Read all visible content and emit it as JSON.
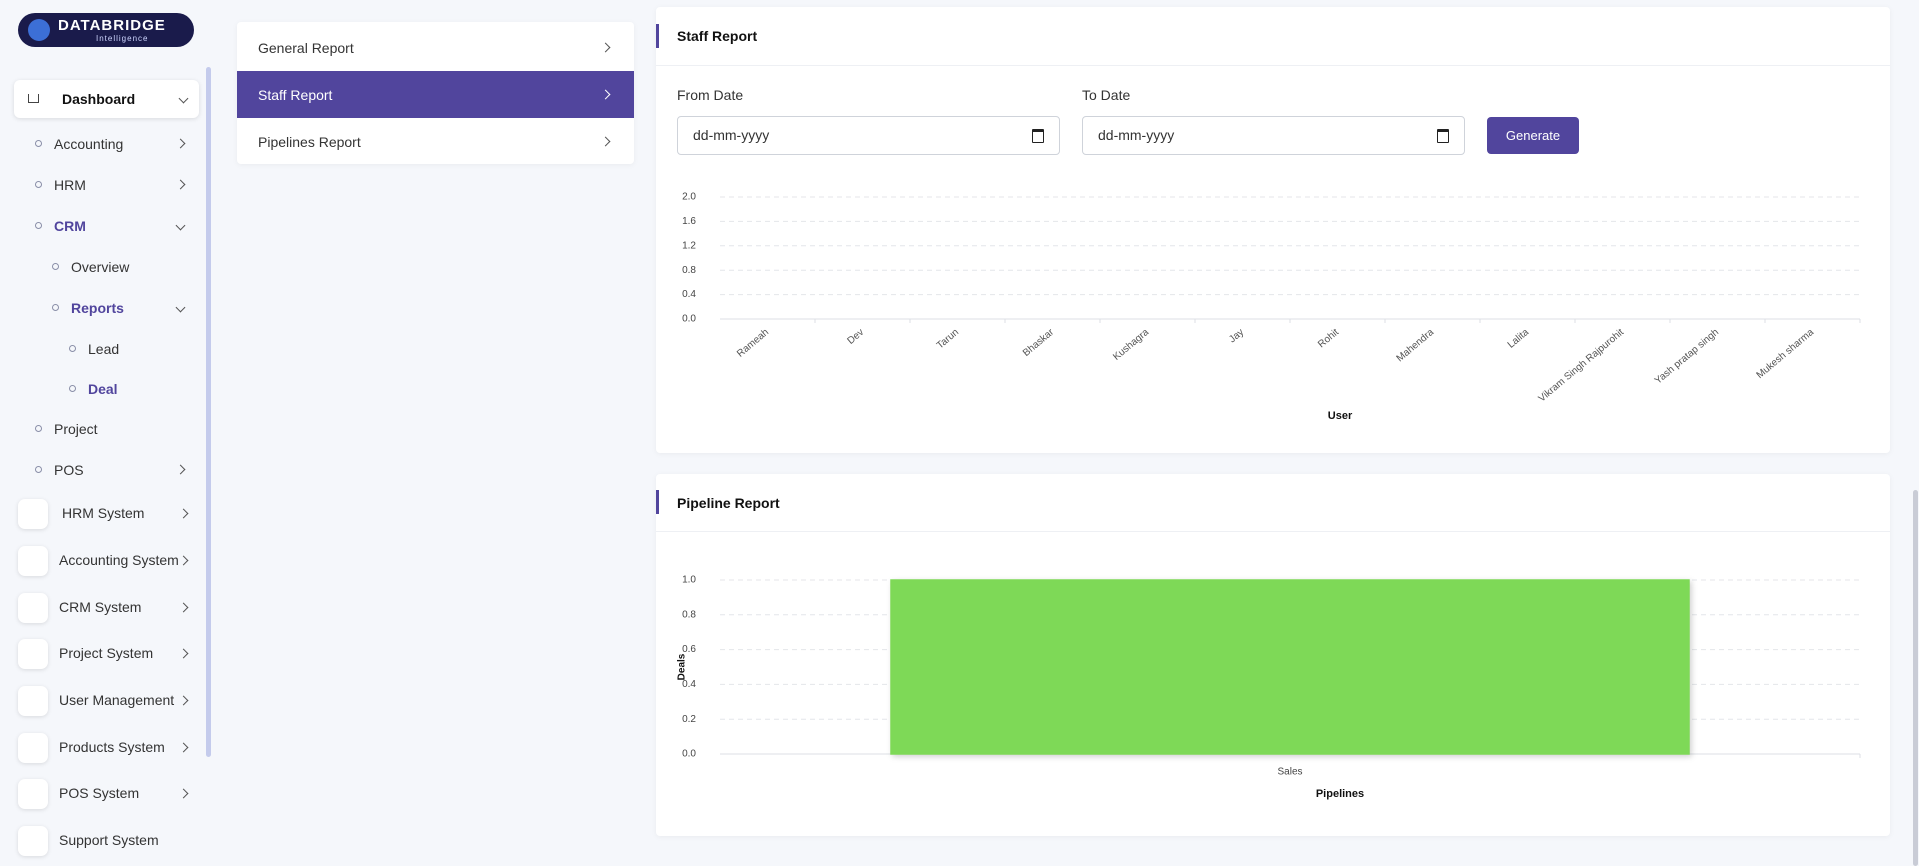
{
  "sidebar": {
    "logo": {
      "name": "DATABRIDGE",
      "tagline": "Intelligence"
    },
    "dashboard": "Dashboard",
    "submenu": [
      "Accounting",
      "HRM",
      "CRM",
      "Overview",
      "Reports",
      "Lead",
      "Deal",
      "Project",
      "POS"
    ],
    "systems": [
      "HRM System",
      "Accounting System",
      "CRM System",
      "Project System",
      "User Management",
      "Products System",
      "POS System",
      "Support System"
    ]
  },
  "report_nav": [
    "General Report",
    "Staff Report",
    "Pipelines Report"
  ],
  "staff_form": {
    "from_label": "From Date",
    "to_label": "To Date",
    "placeholder": "dd-mm-yyyy",
    "button": "Generate"
  },
  "chart_data": [
    {
      "type": "bar",
      "title": "Staff Report",
      "x_label": "User",
      "categories": [
        "Rameah",
        "Dev",
        "Tarun",
        "Bhaskar",
        "Kushagra",
        "Jay",
        "Rohit",
        "Mahendra",
        "Lalita",
        "Vikram Singh Rajpurohit",
        "Yash pratap singh",
        "Mukesh sharma"
      ],
      "values": [
        0,
        0,
        0,
        0,
        0,
        0,
        0,
        0,
        0,
        0,
        0,
        0
      ],
      "color": "#7ed957",
      "ylim": [
        0,
        2
      ],
      "yticks": [
        {
          "value": 0,
          "label": "0.0"
        },
        0.4,
        0.8,
        1.2,
        1.6,
        {
          "value": 2,
          "label": "2.0"
        }
      ],
      "grid": true
    },
    {
      "type": "bar",
      "title": "Pipeline Report",
      "x_label": "Pipelines",
      "y_label": "Deals",
      "categories": [
        "Sales"
      ],
      "values": [
        1
      ],
      "color": "#7ed957",
      "ylim": [
        0,
        1
      ],
      "yticks": [
        {
          "value": 0,
          "label": "0.0"
        },
        0.2,
        0.4,
        0.6,
        0.8,
        {
          "value": 1,
          "label": "1.0"
        }
      ],
      "grid": true
    }
  ]
}
